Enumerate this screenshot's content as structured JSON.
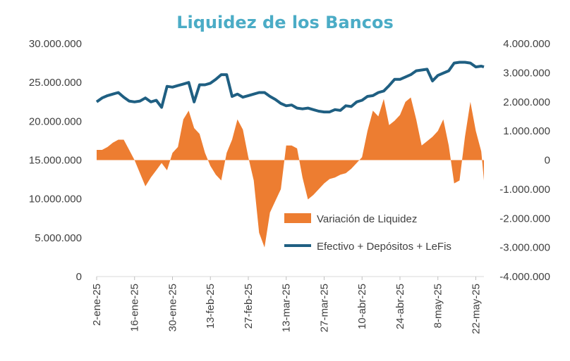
{
  "chart_data": {
    "type": "area",
    "title": "Liquidez de los Bancos",
    "x_tick_labels": [
      "2-ene-25",
      "16-ene-25",
      "30-ene-25",
      "13-feb-25",
      "27-feb-25",
      "13-mar-25",
      "27-mar-25",
      "10-abr-25",
      "24-abr-25",
      "8-may-25",
      "22-may-25"
    ],
    "y_left": {
      "ylim": [
        0,
        30000000
      ],
      "ticks": [
        "0",
        "5.000.000",
        "10.000.000",
        "15.000.000",
        "20.000.000",
        "25.000.000",
        "30.000.000"
      ]
    },
    "y_right": {
      "ylim": [
        -4000000,
        4000000
      ],
      "ticks": [
        "-4.000.000",
        "-3.000.000",
        "-2.000.000",
        "-1.000.000",
        "0",
        "1.000.000",
        "2.000.000",
        "3.000.000",
        "4.000.000"
      ]
    },
    "x_range_days": [
      0,
      143
    ],
    "legend": {
      "position": "center-right"
    },
    "series": [
      {
        "name": "Variación de Liquidez",
        "type": "area",
        "axis": "right",
        "color": "#ed7d31",
        "x": [
          0,
          2,
          4,
          6,
          8,
          10,
          12,
          14,
          16,
          18,
          20,
          22,
          24,
          26,
          28,
          30,
          32,
          34,
          36,
          38,
          40,
          42,
          44,
          46,
          48,
          50,
          52,
          54,
          56,
          58,
          60,
          62,
          64,
          66,
          68,
          70,
          72,
          74,
          76,
          78,
          80,
          82,
          84,
          86,
          88,
          90,
          92,
          94,
          96,
          98,
          100,
          102,
          104,
          106,
          108,
          110,
          112,
          114,
          116,
          118,
          120,
          122,
          124,
          126,
          128,
          130,
          132,
          134,
          136,
          138,
          140,
          142,
          143
        ],
        "values": [
          350000,
          350000,
          450000,
          600000,
          700000,
          700000,
          350000,
          0,
          -450000,
          -900000,
          -600000,
          -350000,
          -100000,
          -350000,
          250000,
          450000,
          1400000,
          1700000,
          1100000,
          900000,
          250000,
          -200000,
          -500000,
          -700000,
          250000,
          700000,
          1400000,
          1050000,
          100000,
          -700000,
          -2500000,
          -3000000,
          -1800000,
          -1400000,
          -1000000,
          500000,
          500000,
          400000,
          -600000,
          -1350000,
          -1200000,
          -1000000,
          -800000,
          -650000,
          -600000,
          -500000,
          -450000,
          -300000,
          -100000,
          100000,
          1000000,
          1700000,
          1500000,
          2100000,
          1200000,
          1350000,
          1550000,
          2000000,
          2150000,
          1400000,
          500000,
          650000,
          800000,
          1000000,
          1400000,
          500000,
          -800000,
          -700000,
          800000,
          2000000,
          1000000,
          300000,
          -700000
        ]
      },
      {
        "name": "Efectivo + Depósitos + LeFis",
        "type": "line",
        "axis": "left",
        "color": "#1f5f82",
        "x": [
          0,
          2,
          4,
          6,
          8,
          10,
          12,
          14,
          16,
          18,
          20,
          22,
          24,
          26,
          28,
          30,
          32,
          34,
          36,
          38,
          40,
          42,
          44,
          46,
          48,
          50,
          52,
          54,
          56,
          58,
          60,
          62,
          64,
          66,
          68,
          70,
          72,
          74,
          76,
          78,
          80,
          82,
          84,
          86,
          88,
          90,
          92,
          94,
          96,
          98,
          100,
          102,
          104,
          106,
          108,
          110,
          112,
          114,
          116,
          118,
          120,
          122,
          124,
          126,
          128,
          130,
          132,
          134,
          136,
          138,
          140,
          142,
          143
        ],
        "values": [
          22500000,
          23000000,
          23300000,
          23500000,
          23700000,
          23100000,
          22600000,
          22500000,
          22600000,
          23000000,
          22500000,
          22700000,
          21800000,
          24500000,
          24400000,
          24600000,
          24800000,
          25000000,
          22500000,
          24700000,
          24700000,
          24900000,
          25400000,
          26000000,
          26000000,
          23200000,
          23500000,
          23100000,
          23300000,
          23500000,
          23700000,
          23700000,
          23200000,
          22800000,
          22300000,
          22000000,
          22100000,
          21700000,
          21600000,
          21700000,
          21500000,
          21300000,
          21200000,
          21200000,
          21500000,
          21400000,
          22000000,
          21900000,
          22500000,
          22700000,
          23200000,
          23300000,
          23700000,
          23900000,
          24600000,
          25400000,
          25400000,
          25700000,
          26000000,
          26500000,
          26600000,
          26700000,
          25200000,
          25900000,
          26200000,
          26500000,
          27500000,
          27600000,
          27600000,
          27500000,
          27000000,
          27100000,
          27000000
        ]
      }
    ]
  }
}
